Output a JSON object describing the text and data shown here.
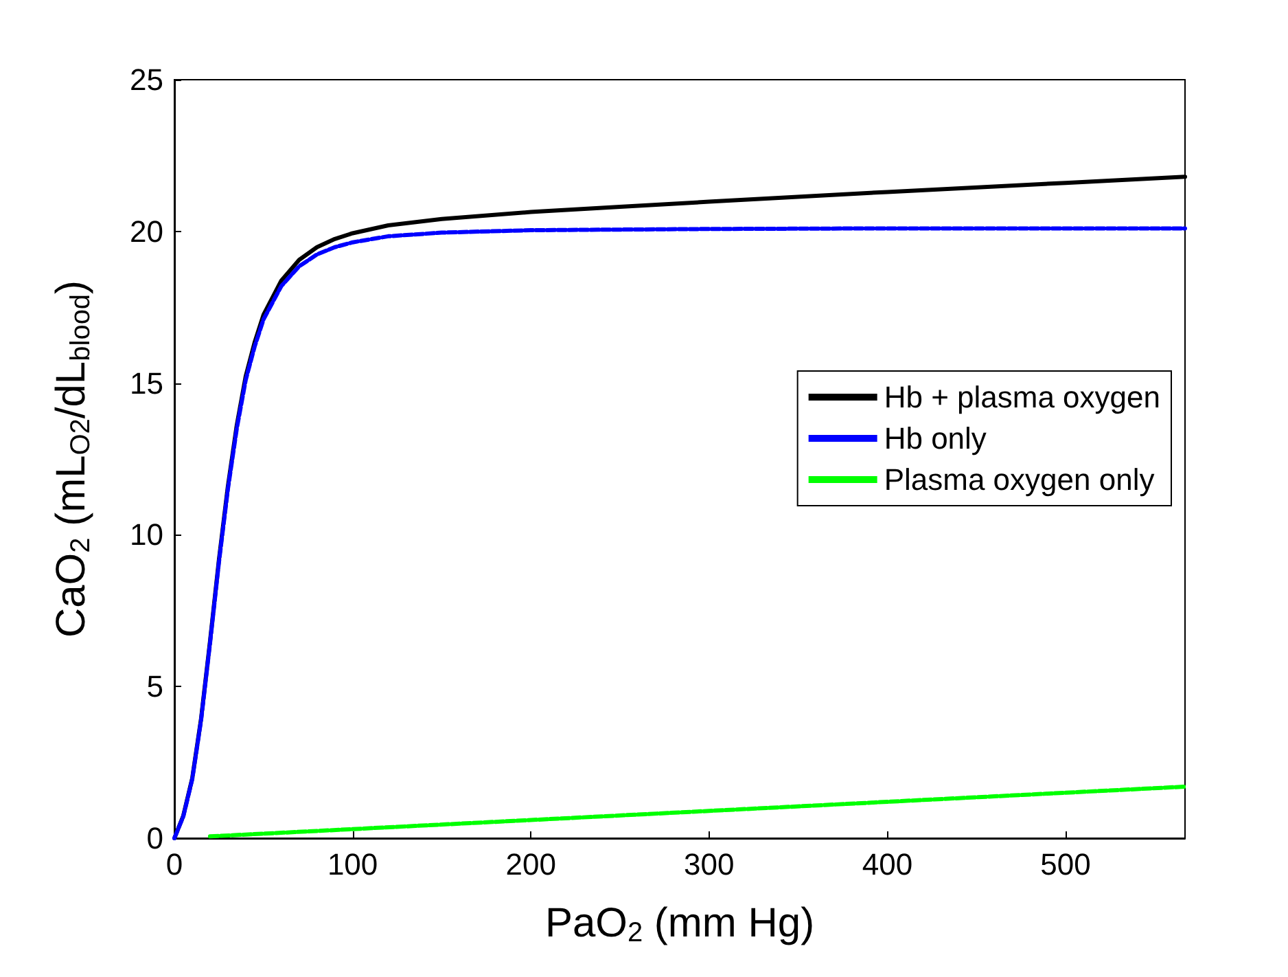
{
  "chart_data": {
    "type": "line",
    "xlabel": "PaO$_{2}$ (mm Hg)",
    "ylabel": "CaO$_{2}$ (mL$_{O2}$/dL$_{blood}$)",
    "xlim": [
      0,
      567
    ],
    "xticks": [
      0,
      100,
      200,
      300,
      400,
      500
    ],
    "ylim": [
      0,
      25
    ],
    "yticks": [
      0,
      5,
      10,
      15,
      20,
      25
    ],
    "grid": false,
    "legend": "right",
    "marker": "none",
    "series": [
      {
        "name": "Hb + plasma oxygen",
        "color": "#000000",
        "line_style": "solid",
        "x": [
          0,
          5,
          10,
          15,
          20,
          25,
          30,
          35,
          40,
          45,
          50,
          60,
          70,
          80,
          90,
          100,
          120,
          150,
          200,
          250,
          300,
          400,
          500,
          567
        ],
        "values": [
          0,
          0.74,
          1.97,
          3.95,
          6.49,
          9.18,
          11.59,
          13.61,
          15.22,
          16.34,
          17.25,
          18.38,
          19.06,
          19.48,
          19.75,
          19.94,
          20.2,
          20.41,
          20.64,
          20.81,
          20.98,
          21.3,
          21.6,
          21.8
        ]
      },
      {
        "name": "Hb only",
        "color": "#0000ff",
        "line_style": "dashed",
        "x": [
          0,
          5,
          10,
          15,
          20,
          25,
          30,
          35,
          40,
          45,
          50,
          60,
          70,
          80,
          90,
          100,
          120,
          150,
          200,
          250,
          300,
          400,
          500,
          567
        ],
        "values": [
          0,
          0.72,
          1.94,
          3.9,
          6.43,
          9.1,
          11.5,
          13.5,
          15.1,
          16.2,
          17.1,
          18.2,
          18.85,
          19.24,
          19.48,
          19.64,
          19.84,
          19.96,
          20.04,
          20.06,
          20.08,
          20.1,
          20.1,
          20.1
        ]
      },
      {
        "name": "Plasma oxygen only",
        "color": "#00ff00",
        "line_style": "dashed",
        "x": [
          20,
          100,
          200,
          300,
          400,
          500,
          567
        ],
        "values": [
          0.06,
          0.3,
          0.6,
          0.9,
          1.2,
          1.5,
          1.7
        ]
      }
    ]
  }
}
